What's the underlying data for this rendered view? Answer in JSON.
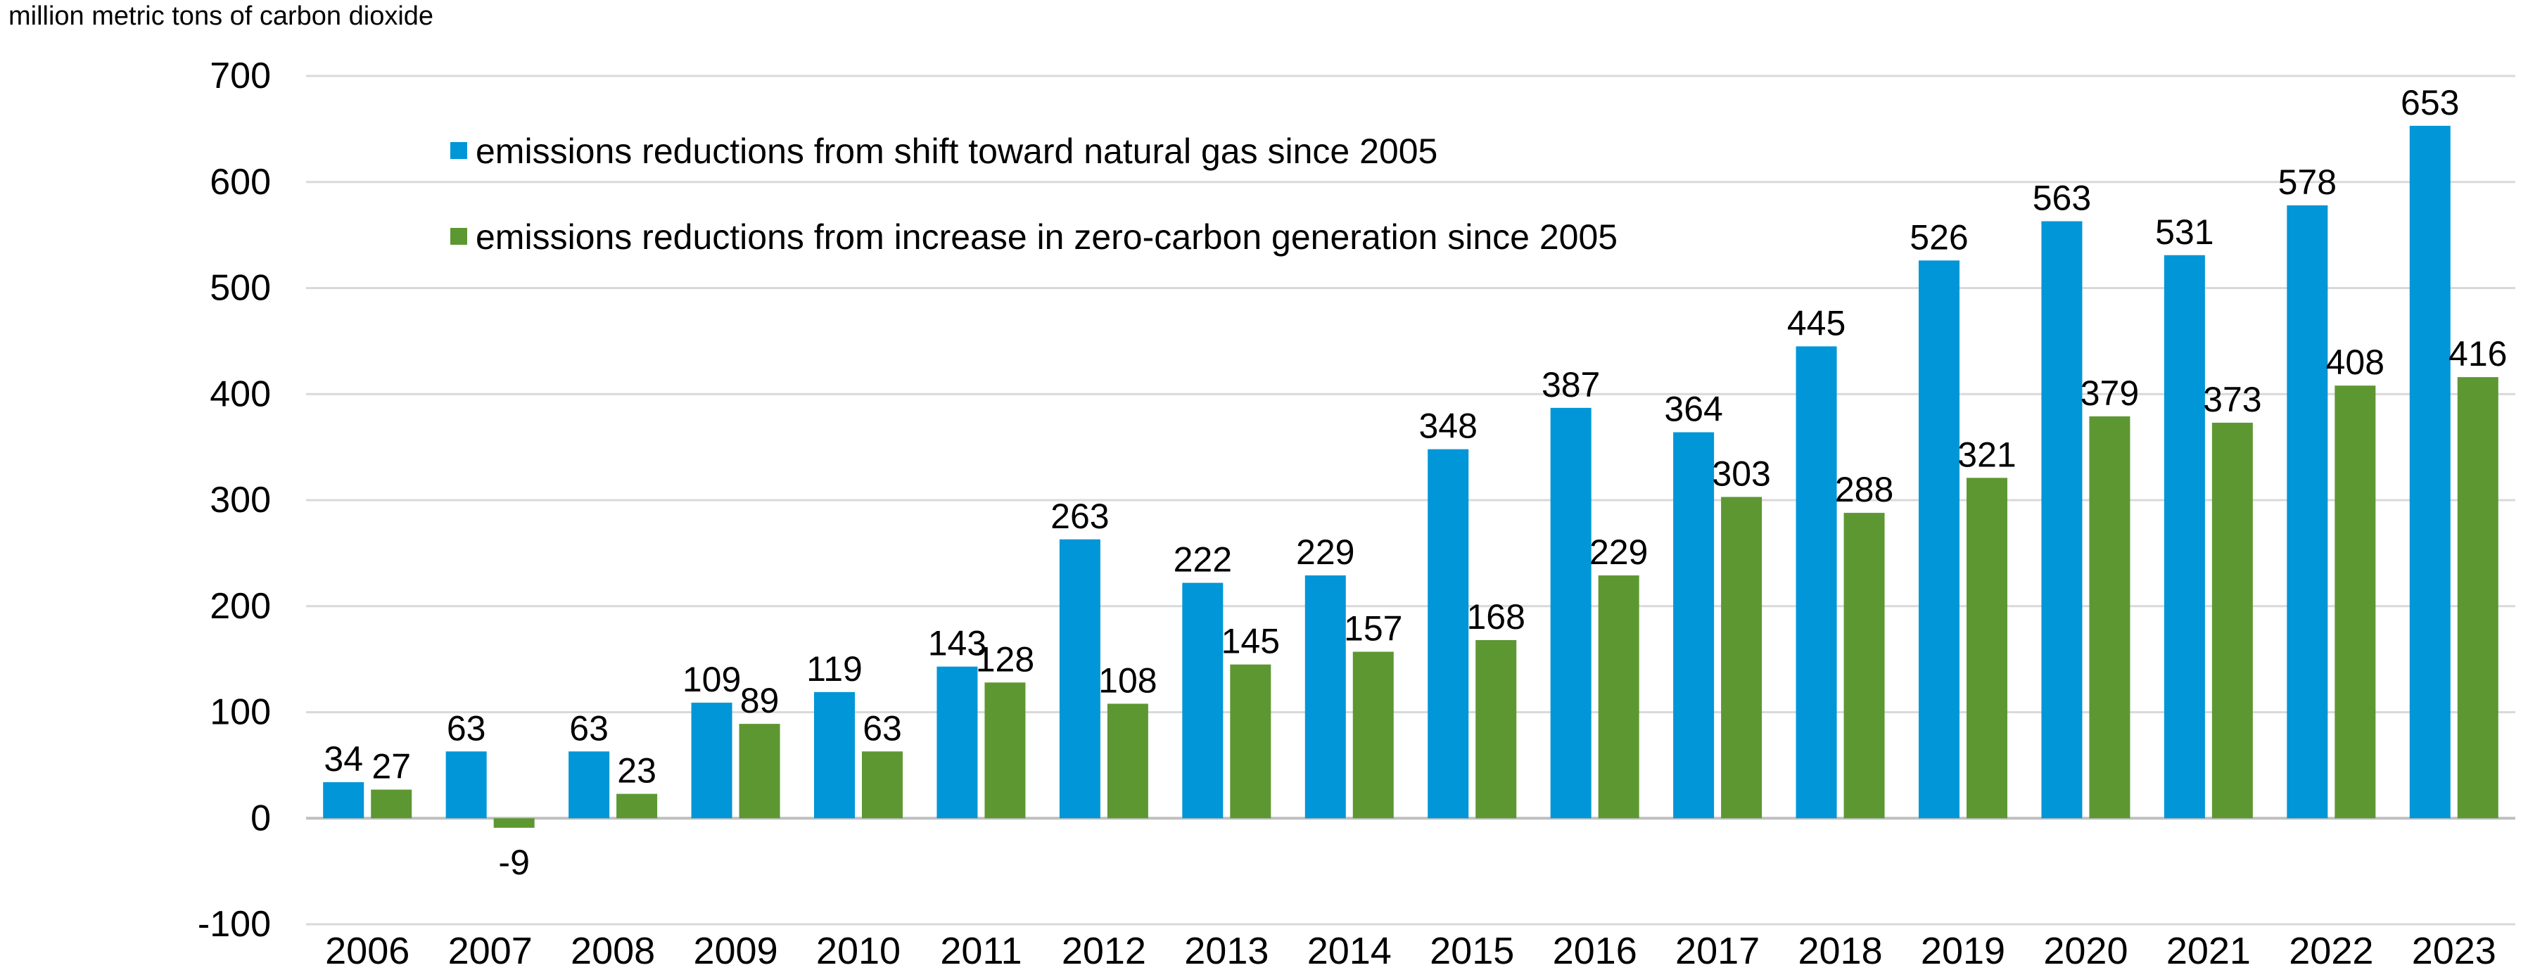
{
  "chart_data": {
    "type": "bar",
    "title": "",
    "unit_label": "million metric tons of carbon dioxide",
    "xlabel": "",
    "ylabel": "million metric tons of carbon dioxide",
    "ylim": [
      -100,
      700
    ],
    "yticks": [
      -100,
      0,
      100,
      200,
      300,
      400,
      500,
      600,
      700
    ],
    "grid": true,
    "legend_position": "top-left",
    "categories": [
      "2006",
      "2007",
      "2008",
      "2009",
      "2010",
      "2011",
      "2012",
      "2013",
      "2014",
      "2015",
      "2016",
      "2017",
      "2018",
      "2019",
      "2020",
      "2021",
      "2022",
      "2023"
    ],
    "series": [
      {
        "name": "emissions reductions from shift toward natural gas since 2005",
        "color": "#0096D7",
        "values": [
          34,
          63,
          63,
          109,
          119,
          143,
          263,
          222,
          229,
          348,
          387,
          364,
          445,
          526,
          563,
          531,
          578,
          653
        ]
      },
      {
        "name": "emissions reductions from increase in zero-carbon generation since 2005",
        "color": "#5D9732",
        "values": [
          27,
          -9,
          23,
          89,
          63,
          128,
          108,
          145,
          157,
          168,
          229,
          303,
          288,
          321,
          379,
          373,
          408,
          416
        ]
      }
    ]
  }
}
